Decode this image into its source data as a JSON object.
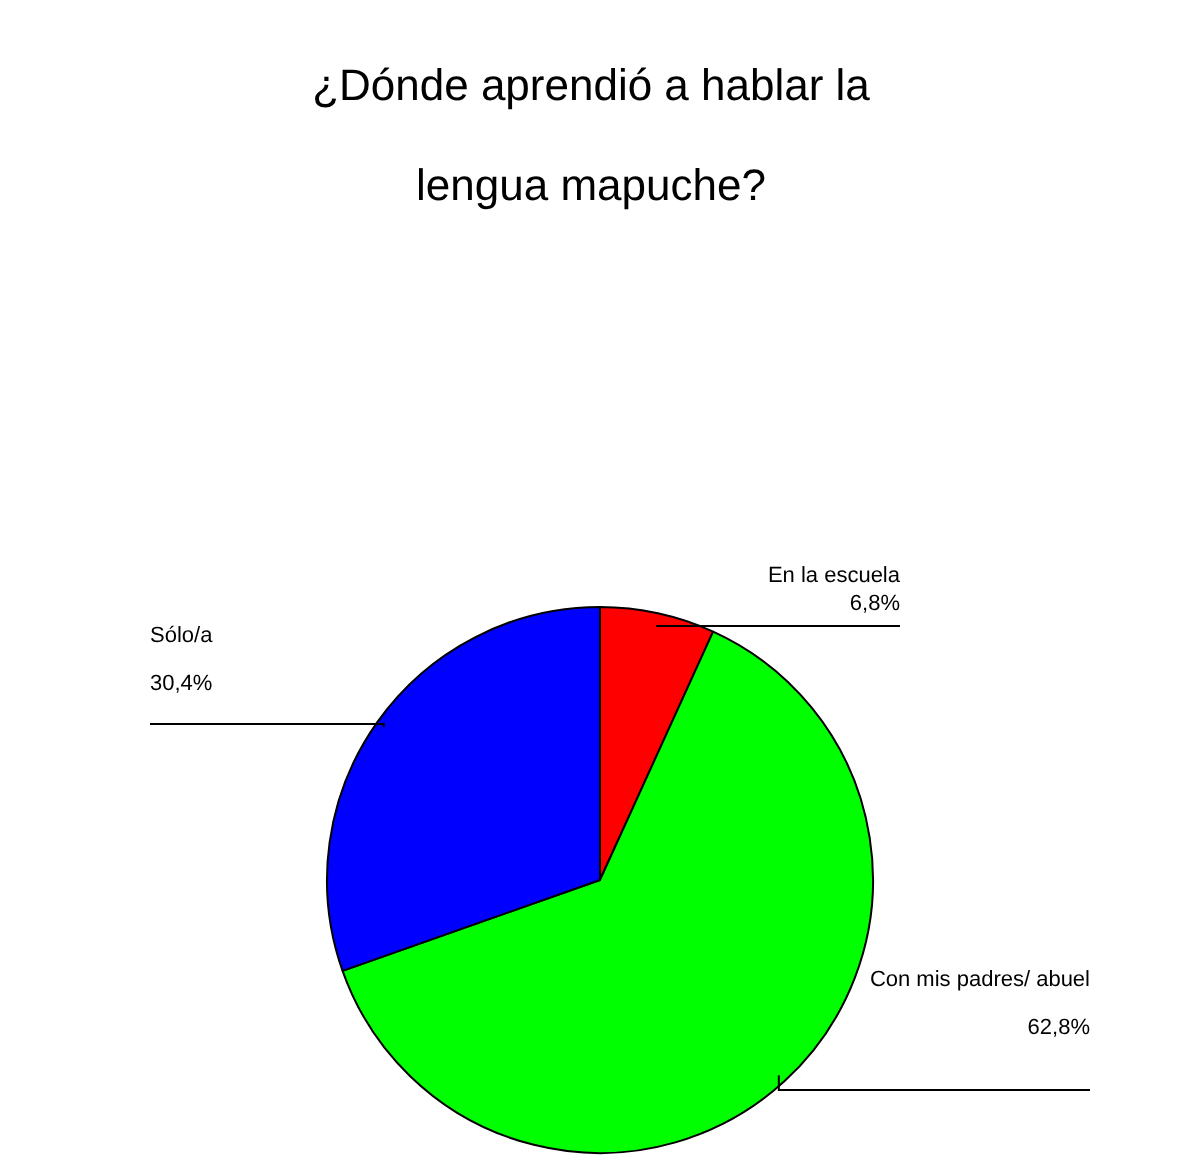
{
  "chart_data": {
    "type": "pie",
    "title": "¿Dónde aprendió a hablar la lengua mapuche?",
    "categories": [
      "En la escuela",
      "Con mis padres/ abuel",
      "Sólo/a"
    ],
    "values": [
      6.8,
      62.8,
      30.4
    ],
    "value_labels": [
      "6,8%",
      "62,8%",
      "30,4%"
    ],
    "colors": [
      "#ff0000",
      "#00ff00",
      "#0000ff"
    ],
    "legend": false
  }
}
